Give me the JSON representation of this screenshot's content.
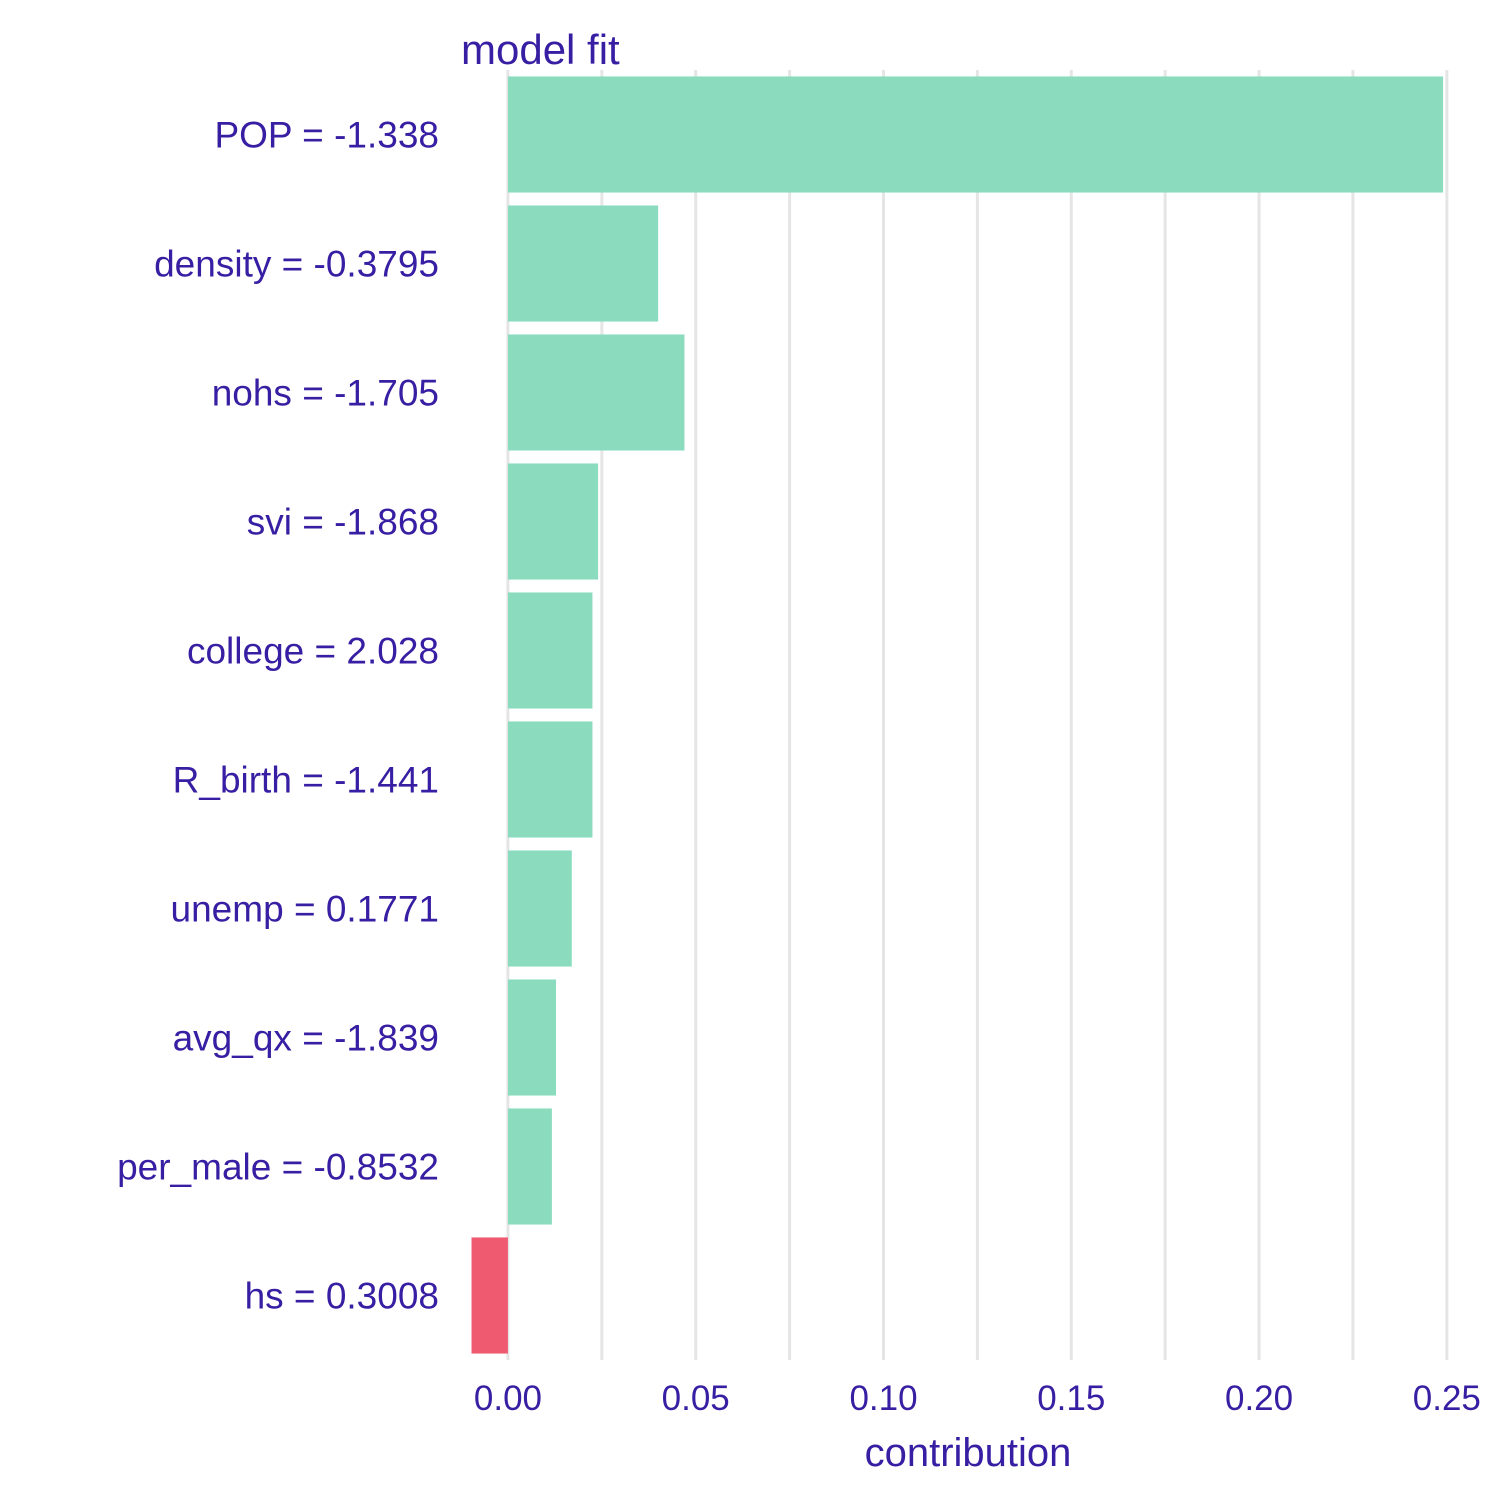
{
  "chart_data": {
    "type": "bar",
    "orientation": "horizontal",
    "title": "model  fit",
    "xlabel": "contribution",
    "ylabel": "",
    "xlim": [
      -0.0125,
      0.2575
    ],
    "xticks": [
      0.0,
      0.05,
      0.1,
      0.15,
      0.2,
      0.25
    ],
    "xtick_labels": [
      "0.00",
      "0.05",
      "0.10",
      "0.15",
      "0.20",
      "0.25"
    ],
    "grid": true,
    "legend": "none",
    "categories": [
      "POP = -1.338",
      "density = -0.3795",
      "nohs = -1.705",
      "svi = -1.868",
      "college = 2.028",
      "R_birth = -1.441",
      "unemp = 0.1771",
      "avg_qx = -1.839",
      "per_male = -0.8532",
      "hs = 0.3008"
    ],
    "values": [
      0.249,
      0.04,
      0.047,
      0.024,
      0.0225,
      0.0225,
      0.017,
      0.0128,
      0.0117,
      -0.0097
    ],
    "colors": {
      "positive": "#8bdcbe",
      "negative": "#f05a71",
      "text": "#371ea3",
      "grid": "#e5e5e5"
    }
  }
}
